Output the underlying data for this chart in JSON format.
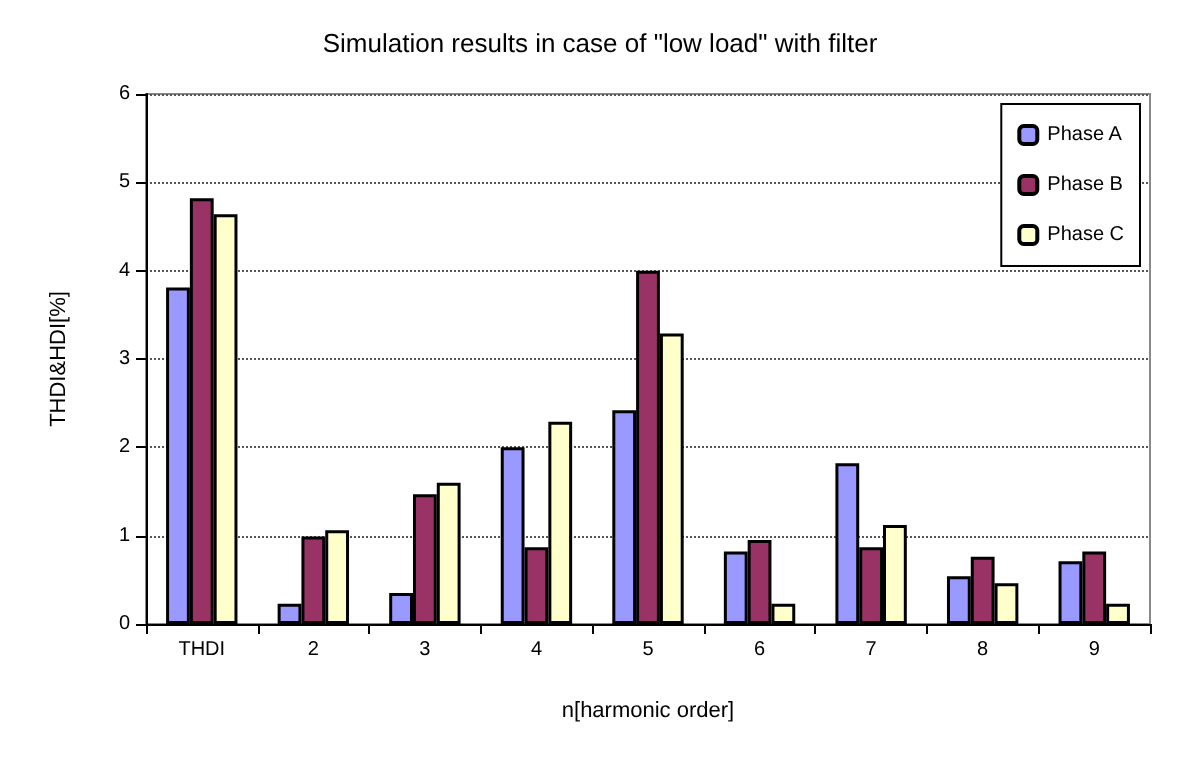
{
  "chart_data": {
    "type": "bar",
    "title": "Simulation results in case of \"low load\" with filter",
    "xlabel": "n[harmonic order]",
    "ylabel": "THDI&HDI[%]",
    "categories": [
      "THDI",
      "2",
      "3",
      "4",
      "5",
      "6",
      "7",
      "8",
      "9"
    ],
    "series": [
      {
        "name": "Phase A",
        "color": "#9999ff",
        "values": [
          3.81,
          0.23,
          0.35,
          2.0,
          2.42,
          0.82,
          1.82,
          0.54,
          0.71
        ]
      },
      {
        "name": "Phase B",
        "color": "#993366",
        "values": [
          4.82,
          0.99,
          1.47,
          0.87,
          4.0,
          0.95,
          0.87,
          0.76,
          0.82
        ]
      },
      {
        "name": "Phase C",
        "color": "#ffffcc",
        "values": [
          4.64,
          1.06,
          1.6,
          2.29,
          3.29,
          0.23,
          1.12,
          0.46,
          0.23
        ]
      }
    ],
    "ylim": [
      0,
      6
    ],
    "yticks": [
      0,
      1,
      2,
      3,
      4,
      5,
      6
    ],
    "grid": "y",
    "legend": "top right"
  }
}
